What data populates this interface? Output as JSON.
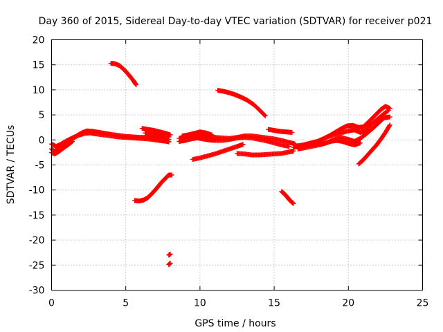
{
  "chart_data": {
    "type": "scatter",
    "title": "Day 360 of 2015, Sidereal Day-to-day VTEC variation (SDTVAR) for receiver p021",
    "xlabel": "GPS time / hours",
    "ylabel": "SDTVAR / TECUs",
    "xlim": [
      0,
      25
    ],
    "ylim": [
      -30,
      20
    ],
    "xticks": [
      "0",
      "5",
      "10",
      "15",
      "20",
      "25"
    ],
    "yticks": [
      "20",
      "15",
      "10",
      "5",
      "0",
      "-5",
      "-10",
      "-15",
      "-20",
      "-25",
      "-30"
    ],
    "grid": true,
    "marker": "plus",
    "color": "#ff0000",
    "series": [
      {
        "points": [
          [
            0.0,
            -1.8
          ],
          [
            0.2,
            -2.3
          ],
          [
            0.4,
            -2.0
          ],
          [
            0.6,
            -1.4
          ],
          [
            0.9,
            -0.8
          ],
          [
            1.2,
            -0.2
          ],
          [
            1.5,
            0.4
          ],
          [
            1.8,
            1.0
          ],
          [
            2.1,
            1.5
          ],
          [
            2.4,
            1.8
          ],
          [
            2.8,
            1.7
          ],
          [
            3.2,
            1.5
          ],
          [
            3.6,
            1.3
          ],
          [
            4.0,
            1.1
          ],
          [
            4.5,
            0.9
          ],
          [
            5.0,
            0.7
          ],
          [
            5.5,
            0.6
          ],
          [
            6.0,
            0.5
          ],
          [
            6.5,
            0.5
          ],
          [
            7.0,
            0.3
          ],
          [
            7.5,
            0.2
          ],
          [
            7.9,
            0.1
          ]
        ]
      },
      {
        "points": [
          [
            0.0,
            -0.8
          ],
          [
            0.3,
            -1.3
          ],
          [
            0.6,
            -0.9
          ],
          [
            1.0,
            -0.2
          ],
          [
            1.4,
            0.4
          ],
          [
            1.8,
            0.9
          ],
          [
            2.2,
            1.3
          ],
          [
            2.6,
            1.4
          ],
          [
            3.0,
            1.2
          ],
          [
            3.5,
            1.0
          ],
          [
            4.0,
            0.8
          ],
          [
            4.5,
            0.6
          ],
          [
            5.0,
            0.5
          ],
          [
            5.5,
            0.4
          ],
          [
            6.0,
            0.3
          ],
          [
            6.5,
            0.2
          ],
          [
            7.0,
            0.0
          ],
          [
            7.5,
            -0.2
          ],
          [
            7.9,
            -0.3
          ]
        ]
      },
      {
        "points": [
          [
            0.0,
            -2.5
          ],
          [
            0.2,
            -2.8
          ],
          [
            0.5,
            -2.3
          ],
          [
            0.8,
            -1.6
          ],
          [
            1.1,
            -1.0
          ],
          [
            1.4,
            -0.3
          ]
        ]
      },
      {
        "points": [
          [
            4.0,
            15.3
          ],
          [
            4.3,
            15.2
          ],
          [
            4.6,
            14.8
          ],
          [
            4.9,
            14.0
          ],
          [
            5.2,
            13.0
          ],
          [
            5.5,
            11.9
          ],
          [
            5.7,
            11.0
          ]
        ]
      },
      {
        "points": [
          [
            5.6,
            -12.1
          ],
          [
            5.9,
            -12.2
          ],
          [
            6.2,
            -12.0
          ],
          [
            6.5,
            -11.5
          ],
          [
            6.8,
            -10.6
          ],
          [
            7.1,
            -9.6
          ],
          [
            7.4,
            -8.5
          ],
          [
            7.7,
            -7.6
          ],
          [
            7.9,
            -7.0
          ],
          [
            8.1,
            -7.0
          ]
        ]
      },
      {
        "points": [
          [
            7.9,
            -23.0
          ],
          [
            8.0,
            -22.8
          ]
        ]
      },
      {
        "points": [
          [
            7.9,
            -24.9
          ],
          [
            8.0,
            -24.6
          ]
        ]
      },
      {
        "points": [
          [
            6.1,
            2.3
          ],
          [
            6.5,
            2.1
          ],
          [
            6.9,
            1.9
          ],
          [
            7.3,
            1.6
          ],
          [
            7.7,
            1.3
          ],
          [
            8.0,
            1.0
          ]
        ]
      },
      {
        "points": [
          [
            6.3,
            1.4
          ],
          [
            6.7,
            1.2
          ],
          [
            7.1,
            1.0
          ],
          [
            7.5,
            0.8
          ],
          [
            7.9,
            0.6
          ]
        ]
      },
      {
        "points": [
          [
            6.5,
            0.5
          ],
          [
            7.0,
            0.2
          ],
          [
            7.5,
            -0.1
          ],
          [
            7.9,
            -0.4
          ]
        ]
      },
      {
        "points": [
          [
            8.6,
            0.3
          ],
          [
            9.0,
            0.6
          ],
          [
            9.4,
            0.9
          ],
          [
            9.8,
            1.1
          ],
          [
            10.2,
            0.9
          ],
          [
            10.6,
            0.7
          ],
          [
            11.0,
            0.5
          ],
          [
            11.5,
            0.4
          ],
          [
            12.0,
            0.3
          ],
          [
            12.5,
            0.5
          ],
          [
            13.0,
            0.8
          ],
          [
            13.5,
            0.8
          ],
          [
            14.0,
            0.6
          ],
          [
            14.5,
            0.4
          ],
          [
            15.0,
            0.2
          ],
          [
            15.5,
            -0.1
          ],
          [
            16.0,
            -0.5
          ],
          [
            16.4,
            -0.8
          ]
        ]
      },
      {
        "points": [
          [
            8.6,
            -0.3
          ],
          [
            9.0,
            -0.1
          ],
          [
            9.4,
            0.2
          ],
          [
            9.8,
            0.4
          ],
          [
            10.2,
            0.2
          ],
          [
            10.6,
            0.0
          ],
          [
            11.0,
            -0.1
          ],
          [
            11.5,
            -0.1
          ],
          [
            12.0,
            0.1
          ],
          [
            12.5,
            0.4
          ],
          [
            13.0,
            0.5
          ],
          [
            13.5,
            0.4
          ],
          [
            14.0,
            0.1
          ],
          [
            14.5,
            -0.2
          ],
          [
            15.0,
            -0.6
          ],
          [
            15.5,
            -1.0
          ],
          [
            16.0,
            -1.3
          ]
        ]
      },
      {
        "points": [
          [
            8.8,
            0.8
          ],
          [
            9.2,
            1.0
          ],
          [
            9.6,
            1.3
          ],
          [
            10.0,
            1.6
          ],
          [
            10.4,
            1.4
          ],
          [
            10.8,
            1.0
          ]
        ]
      },
      {
        "points": [
          [
            9.5,
            -3.9
          ],
          [
            10.0,
            -3.6
          ],
          [
            10.5,
            -3.2
          ],
          [
            11.0,
            -2.8
          ],
          [
            11.5,
            -2.3
          ],
          [
            12.0,
            -1.8
          ],
          [
            12.5,
            -1.3
          ],
          [
            12.9,
            -0.9
          ]
        ]
      },
      {
        "points": [
          [
            11.2,
            9.9
          ],
          [
            11.6,
            9.7
          ],
          [
            12.0,
            9.4
          ],
          [
            12.4,
            9.0
          ],
          [
            12.8,
            8.5
          ],
          [
            13.2,
            7.9
          ],
          [
            13.6,
            7.1
          ],
          [
            14.0,
            6.0
          ],
          [
            14.4,
            4.8
          ]
        ]
      },
      {
        "points": [
          [
            12.5,
            -2.7
          ],
          [
            13.0,
            -2.8
          ],
          [
            13.5,
            -3.0
          ],
          [
            14.0,
            -3.0
          ],
          [
            14.5,
            -2.9
          ],
          [
            15.0,
            -2.8
          ],
          [
            15.5,
            -2.7
          ],
          [
            16.0,
            -2.4
          ],
          [
            16.3,
            -2.2
          ]
        ]
      },
      {
        "points": [
          [
            14.6,
            2.1
          ],
          [
            15.0,
            1.9
          ],
          [
            15.4,
            1.7
          ],
          [
            15.8,
            1.6
          ],
          [
            16.2,
            1.5
          ]
        ]
      },
      {
        "points": [
          [
            15.5,
            -10.3
          ],
          [
            15.7,
            -10.8
          ],
          [
            15.9,
            -11.5
          ],
          [
            16.1,
            -12.2
          ],
          [
            16.3,
            -12.7
          ]
        ]
      },
      {
        "points": [
          [
            16.3,
            -1.5
          ],
          [
            16.7,
            -1.2
          ],
          [
            17.1,
            -0.9
          ],
          [
            17.5,
            -0.6
          ],
          [
            17.9,
            -0.3
          ],
          [
            18.3,
            0.2
          ],
          [
            18.7,
            0.8
          ],
          [
            19.1,
            1.5
          ],
          [
            19.5,
            2.2
          ],
          [
            19.9,
            2.8
          ],
          [
            20.3,
            2.9
          ],
          [
            20.7,
            2.5
          ],
          [
            21.0,
            2.6
          ],
          [
            21.3,
            3.4
          ],
          [
            21.6,
            4.3
          ],
          [
            21.9,
            5.2
          ],
          [
            22.2,
            6.1
          ],
          [
            22.5,
            6.7
          ],
          [
            22.8,
            6.3
          ]
        ]
      },
      {
        "points": [
          [
            16.5,
            -1.2
          ],
          [
            17.0,
            -1.0
          ],
          [
            17.5,
            -0.8
          ],
          [
            18.0,
            -0.3
          ],
          [
            18.5,
            0.5
          ],
          [
            19.0,
            1.0
          ],
          [
            19.5,
            1.4
          ],
          [
            20.0,
            1.8
          ],
          [
            20.4,
            2.0
          ],
          [
            20.8,
            1.5
          ],
          [
            21.1,
            1.8
          ],
          [
            21.5,
            3.0
          ],
          [
            21.9,
            4.0
          ],
          [
            22.3,
            5.0
          ],
          [
            22.7,
            5.9
          ]
        ]
      },
      {
        "points": [
          [
            16.6,
            -1.8
          ],
          [
            17.0,
            -1.6
          ],
          [
            17.5,
            -1.3
          ],
          [
            18.0,
            -1.0
          ],
          [
            18.5,
            -0.6
          ],
          [
            19.0,
            0.0
          ],
          [
            19.5,
            0.5
          ],
          [
            20.0,
            0.1
          ],
          [
            20.4,
            -0.3
          ],
          [
            20.8,
            0.3
          ],
          [
            21.2,
            1.2
          ],
          [
            21.6,
            2.2
          ],
          [
            22.0,
            3.3
          ],
          [
            22.4,
            4.4
          ],
          [
            22.8,
            4.6
          ]
        ]
      },
      {
        "points": [
          [
            18.0,
            -1.0
          ],
          [
            18.4,
            -0.7
          ],
          [
            18.8,
            -0.3
          ],
          [
            19.2,
            -0.1
          ],
          [
            19.6,
            -0.3
          ],
          [
            20.0,
            -0.7
          ],
          [
            20.4,
            -1.0
          ],
          [
            20.8,
            -0.6
          ]
        ]
      },
      {
        "points": [
          [
            20.7,
            -4.8
          ],
          [
            21.0,
            -4.0
          ],
          [
            21.3,
            -3.0
          ],
          [
            21.6,
            -2.0
          ],
          [
            21.9,
            -1.0
          ],
          [
            22.2,
            0.2
          ],
          [
            22.5,
            1.5
          ],
          [
            22.8,
            3.0
          ]
        ]
      }
    ]
  }
}
